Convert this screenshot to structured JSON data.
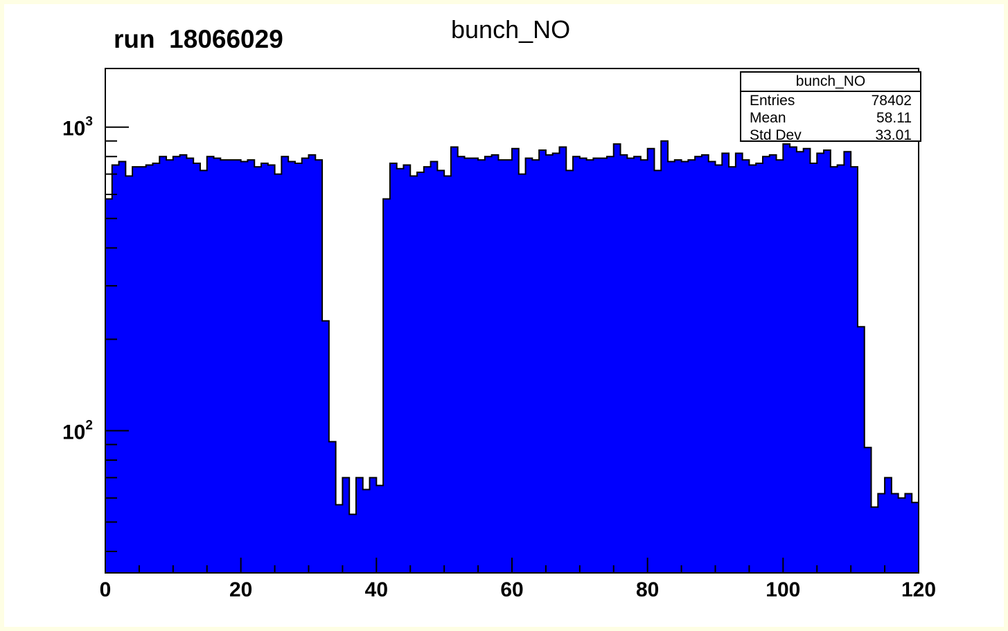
{
  "canvas": {
    "run_label": "run  18066029",
    "title": "bunch_NO"
  },
  "stats": {
    "title": "bunch_NO",
    "rows": [
      {
        "label": "Entries",
        "value": "78402"
      },
      {
        "label": "Mean",
        "value": "58.11"
      },
      {
        "label": "Std Dev",
        "value": "33.01"
      }
    ]
  },
  "colors": {
    "fill": "#0000ff",
    "line": "#000000",
    "frame_border": "#fefee4"
  },
  "chart_data": {
    "type": "bar",
    "title": "bunch_NO",
    "xlabel": "",
    "ylabel": "",
    "xlim": [
      0,
      120
    ],
    "ylim": [
      34,
      1560
    ],
    "yscale": "log",
    "grid": false,
    "legend": "none",
    "bins": 120,
    "x_ticks": [
      "0",
      "20",
      "40",
      "60",
      "80",
      "100",
      "120"
    ],
    "y_ticks": [
      {
        "base": "10",
        "exp": "3",
        "value": 1000
      },
      {
        "base": "10",
        "exp": "2",
        "value": 100
      }
    ],
    "values": [
      580,
      750,
      770,
      690,
      740,
      740,
      750,
      760,
      800,
      780,
      800,
      810,
      790,
      760,
      720,
      800,
      790,
      780,
      780,
      780,
      770,
      780,
      740,
      760,
      750,
      700,
      800,
      770,
      760,
      790,
      810,
      780,
      230,
      92,
      57,
      70,
      53,
      70,
      64,
      70,
      66,
      580,
      760,
      730,
      750,
      690,
      710,
      740,
      770,
      720,
      690,
      860,
      800,
      790,
      790,
      780,
      800,
      810,
      780,
      780,
      850,
      700,
      790,
      780,
      840,
      810,
      820,
      860,
      720,
      800,
      790,
      780,
      790,
      790,
      800,
      880,
      810,
      790,
      800,
      780,
      850,
      720,
      900,
      770,
      780,
      770,
      780,
      800,
      810,
      770,
      750,
      820,
      740,
      820,
      780,
      750,
      760,
      800,
      810,
      780,
      880,
      860,
      830,
      850,
      760,
      820,
      840,
      740,
      750,
      830,
      740,
      220,
      88,
      56,
      62,
      70,
      62,
      60,
      62,
      58
    ]
  }
}
